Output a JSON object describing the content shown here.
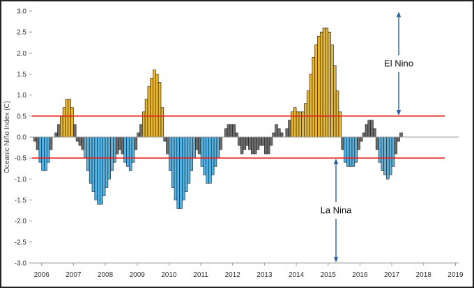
{
  "chart_data": {
    "type": "bar",
    "title": "",
    "xlabel": "",
    "ylabel": "Oceanic Niño Index (C)",
    "ylim": [
      -3.0,
      3.0
    ],
    "yticks": [
      3.0,
      2.5,
      2.0,
      1.5,
      1.0,
      0.5,
      0.0,
      -0.5,
      -1.0,
      -1.5,
      -2.0,
      -2.5,
      -3.0
    ],
    "xticks": [
      "2006",
      "2007",
      "2008",
      "2009",
      "2010",
      "2011",
      "2012",
      "2013",
      "2014",
      "2015",
      "2016",
      "2017",
      "2018",
      "2019"
    ],
    "x_start": 2005.7,
    "x_end": 2019.1,
    "bar_start": 2005.75,
    "bar_step": 0.08333,
    "thresholds": [
      0.5,
      -0.5
    ],
    "values": [
      -0.1,
      -0.3,
      -0.6,
      -0.8,
      -0.8,
      -0.6,
      -0.3,
      0.0,
      0.1,
      0.3,
      0.5,
      0.7,
      0.9,
      0.9,
      0.7,
      0.3,
      -0.1,
      -0.2,
      -0.3,
      -0.5,
      -0.8,
      -1.1,
      -1.3,
      -1.5,
      -1.6,
      -1.6,
      -1.4,
      -1.2,
      -1.0,
      -0.8,
      -0.6,
      -0.4,
      -0.3,
      -0.4,
      -0.6,
      -0.7,
      -0.8,
      -0.6,
      -0.3,
      0.1,
      0.3,
      0.6,
      0.9,
      1.2,
      1.4,
      1.6,
      1.5,
      1.3,
      0.7,
      -0.1,
      -0.4,
      -0.8,
      -1.2,
      -1.5,
      -1.7,
      -1.7,
      -1.5,
      -1.3,
      -1.1,
      -0.8,
      -0.5,
      -0.3,
      -0.4,
      -0.7,
      -0.9,
      -1.1,
      -1.1,
      -0.9,
      -0.7,
      -0.5,
      -0.3,
      0.0,
      0.2,
      0.3,
      0.3,
      0.3,
      0.1,
      -0.2,
      -0.4,
      -0.3,
      -0.2,
      -0.3,
      -0.4,
      -0.4,
      -0.3,
      -0.2,
      -0.2,
      -0.4,
      -0.4,
      -0.2,
      0.1,
      0.3,
      0.2,
      0.1,
      0.0,
      0.2,
      0.4,
      0.6,
      0.7,
      0.6,
      0.6,
      0.6,
      0.8,
      1.1,
      1.5,
      1.9,
      2.2,
      2.4,
      2.5,
      2.6,
      2.6,
      2.5,
      2.2,
      1.7,
      1.1,
      0.6,
      -0.3,
      -0.6,
      -0.7,
      -0.7,
      -0.7,
      -0.6,
      -0.3,
      -0.1,
      0.1,
      0.3,
      0.4,
      0.4,
      0.2,
      -0.3,
      -0.6,
      -0.8,
      -0.9,
      -1.0,
      -0.9,
      -0.7,
      -0.4,
      -0.1,
      0.1
    ],
    "annotations": [
      {
        "label": "El Nino",
        "value": 0.5,
        "direction": "up"
      },
      {
        "label": "La Nina",
        "value": -0.5,
        "direction": "down"
      }
    ],
    "colors": {
      "el_nino": "#e8b830",
      "la_nina": "#55b4e4",
      "neutral": "#6e6e6e",
      "threshold": "#e8201c",
      "arrow": "#2a5d9e",
      "bar_outline": "#222222",
      "zero_line": "#9a9a9a"
    }
  }
}
